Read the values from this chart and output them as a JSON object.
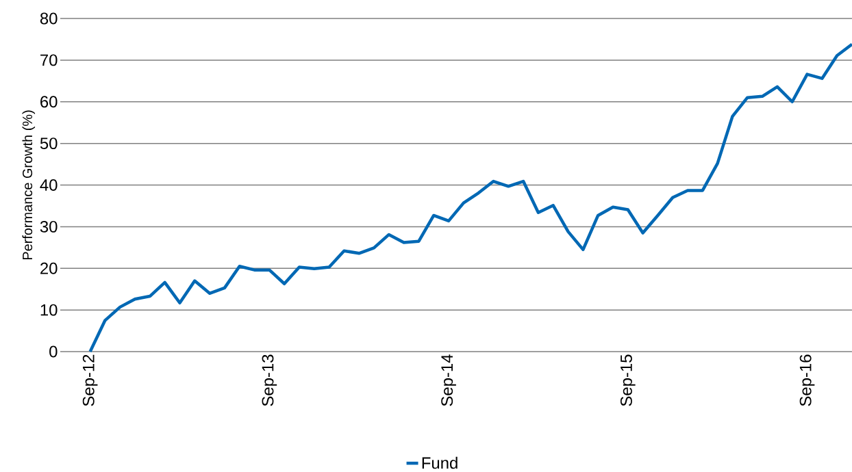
{
  "chart_data": {
    "type": "line",
    "ylabel": "Performance Growth (%)",
    "x": [
      "2012-09",
      "2012-10",
      "2012-11",
      "2012-12",
      "2013-01",
      "2013-02",
      "2013-03",
      "2013-04",
      "2013-05",
      "2013-06",
      "2013-07",
      "2013-08",
      "2013-09",
      "2013-10",
      "2013-11",
      "2013-12",
      "2014-01",
      "2014-02",
      "2014-03",
      "2014-04",
      "2014-05",
      "2014-06",
      "2014-07",
      "2014-08",
      "2014-09",
      "2014-10",
      "2014-11",
      "2014-12",
      "2015-01",
      "2015-02",
      "2015-03",
      "2015-04",
      "2015-05",
      "2015-06",
      "2015-07",
      "2015-08",
      "2015-09",
      "2015-10",
      "2015-11",
      "2015-12",
      "2016-01",
      "2016-02",
      "2016-03",
      "2016-04",
      "2016-05",
      "2016-06",
      "2016-07",
      "2016-08",
      "2016-09",
      "2016-10",
      "2016-11",
      "2016-12"
    ],
    "series": [
      {
        "name": "Fund",
        "color": "#0068b4",
        "values": [
          0,
          7.5,
          10.7,
          12.6,
          13.3,
          16.6,
          11.7,
          17,
          14,
          15.3,
          20.5,
          19.6,
          19.6,
          16.3,
          20.3,
          19.9,
          20.3,
          24.2,
          23.6,
          24.9,
          28.1,
          26.2,
          26.5,
          32.7,
          31.4,
          35.7,
          38.1,
          40.9,
          39.7,
          40.9,
          33.4,
          35.1,
          28.8,
          24.5,
          32.7,
          34.7,
          34.1,
          28.5,
          32.7,
          37,
          38.7,
          38.7,
          45.2,
          56.5,
          61,
          61.3,
          63.6,
          60,
          66.6,
          65.6,
          71.1,
          73.8
        ]
      }
    ],
    "xlim": [
      "2012-07",
      "2016-12"
    ],
    "xticks": [
      {
        "value": "2012-09",
        "label": "Sep-12"
      },
      {
        "value": "2013-09",
        "label": "Sep-13"
      },
      {
        "value": "2014-09",
        "label": "Sep-14"
      },
      {
        "value": "2015-09",
        "label": "Sep-15"
      },
      {
        "value": "2016-09",
        "label": "Sep-16"
      }
    ],
    "ylim": [
      0,
      80
    ],
    "yticks": [
      0,
      10,
      20,
      30,
      40,
      50,
      60,
      70,
      80
    ],
    "grid": "y",
    "legend": "bottom",
    "marker": "none",
    "line_style": "solid"
  }
}
